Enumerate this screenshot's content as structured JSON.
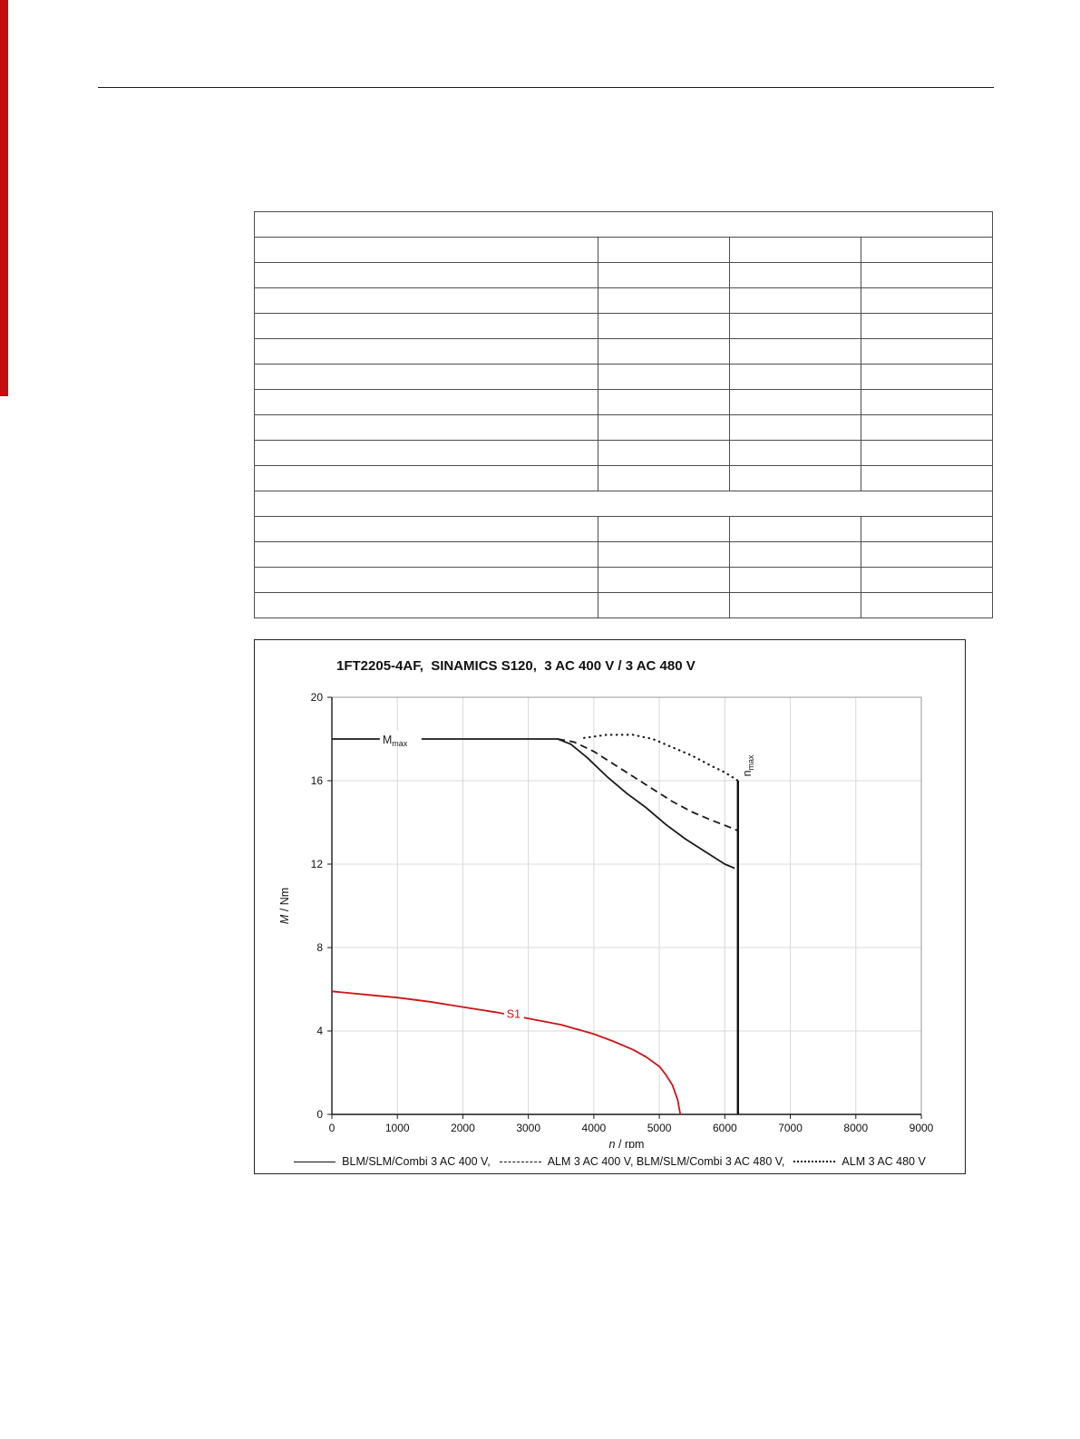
{
  "accent": {
    "sidebar_color": "#c40d0d"
  },
  "table": {
    "columns": 4,
    "col_widths_pct": [
      46.6,
      17.8,
      17.8,
      17.8
    ],
    "rows": [
      {
        "type": "span",
        "cells": [
          ""
        ]
      },
      {
        "type": "cols",
        "cells": [
          "",
          "",
          "",
          ""
        ]
      },
      {
        "type": "cols",
        "cells": [
          "",
          "",
          "",
          ""
        ]
      },
      {
        "type": "cols",
        "cells": [
          "",
          "",
          "",
          ""
        ]
      },
      {
        "type": "cols",
        "cells": [
          "",
          "",
          "",
          ""
        ]
      },
      {
        "type": "cols",
        "cells": [
          "",
          "",
          "",
          ""
        ]
      },
      {
        "type": "cols",
        "cells": [
          "",
          "",
          "",
          ""
        ]
      },
      {
        "type": "cols",
        "cells": [
          "",
          "",
          "",
          ""
        ]
      },
      {
        "type": "cols",
        "cells": [
          "",
          "",
          "",
          ""
        ]
      },
      {
        "type": "cols",
        "cells": [
          "",
          "",
          "",
          ""
        ]
      },
      {
        "type": "cols",
        "cells": [
          "",
          "",
          "",
          ""
        ]
      },
      {
        "type": "span",
        "cells": [
          ""
        ]
      },
      {
        "type": "cols",
        "cells": [
          "",
          "",
          "",
          ""
        ]
      },
      {
        "type": "cols",
        "cells": [
          "",
          "",
          "",
          ""
        ]
      },
      {
        "type": "cols",
        "cells": [
          "",
          "",
          "",
          ""
        ]
      },
      {
        "type": "cols",
        "cells": [
          "",
          "",
          "",
          ""
        ]
      }
    ]
  },
  "chart_data": {
    "type": "line",
    "title": "1FT2205-4AF,  SINAMICS S120,  3 AC 400 V / 3 AC 480 V",
    "xlabel": "n / rpm",
    "ylabel": "M / Nm",
    "xlim": [
      0,
      9000
    ],
    "ylim": [
      0,
      20
    ],
    "xticks": [
      0,
      1000,
      2000,
      3000,
      4000,
      5000,
      6000,
      7000,
      8000,
      9000
    ],
    "yticks": [
      0,
      4,
      8,
      12,
      16,
      20
    ],
    "grid": true,
    "series": [
      {
        "name": "BLM/SLM/Combi 3 AC 400 V",
        "style": "solid",
        "color": "#1a1a1a",
        "points": [
          [
            0,
            18
          ],
          [
            3450,
            18
          ],
          [
            3650,
            17.75
          ],
          [
            3900,
            17.1
          ],
          [
            4200,
            16.2
          ],
          [
            4500,
            15.4
          ],
          [
            4800,
            14.7
          ],
          [
            5100,
            13.9
          ],
          [
            5400,
            13.2
          ],
          [
            5700,
            12.6
          ],
          [
            6000,
            12.0
          ],
          [
            6150,
            11.8
          ]
        ]
      },
      {
        "name": "ALM 3 AC 400 V, BLM/SLM/Combi 3 AC 480 V",
        "style": "dashed",
        "color": "#1a1a1a",
        "points": [
          [
            3450,
            18
          ],
          [
            3700,
            17.85
          ],
          [
            4000,
            17.4
          ],
          [
            4300,
            16.8
          ],
          [
            4600,
            16.2
          ],
          [
            4900,
            15.6
          ],
          [
            5200,
            15.0
          ],
          [
            5500,
            14.5
          ],
          [
            5800,
            14.1
          ],
          [
            6050,
            13.8
          ],
          [
            6200,
            13.6
          ]
        ]
      },
      {
        "name": "ALM 3 AC 480 V",
        "style": "dotted",
        "color": "#1a1a1a",
        "points": [
          [
            3850,
            18.05
          ],
          [
            4200,
            18.2
          ],
          [
            4600,
            18.2
          ],
          [
            4900,
            18.0
          ],
          [
            5200,
            17.6
          ],
          [
            5500,
            17.2
          ],
          [
            5800,
            16.7
          ],
          [
            6000,
            16.4
          ],
          [
            6200,
            16.0
          ]
        ]
      },
      {
        "name": "S1",
        "style": "solid",
        "color": "#cc1417",
        "points": [
          [
            0,
            5.9
          ],
          [
            500,
            5.75
          ],
          [
            1000,
            5.6
          ],
          [
            1500,
            5.4
          ],
          [
            2000,
            5.15
          ],
          [
            2500,
            4.9
          ],
          [
            3000,
            4.6
          ],
          [
            3500,
            4.3
          ],
          [
            4000,
            3.85
          ],
          [
            4300,
            3.5
          ],
          [
            4600,
            3.1
          ],
          [
            4800,
            2.75
          ],
          [
            5000,
            2.3
          ],
          [
            5100,
            1.9
          ],
          [
            5200,
            1.4
          ],
          [
            5280,
            0.7
          ],
          [
            5320,
            0
          ]
        ]
      }
    ],
    "vline": {
      "x": 6200,
      "y_from": 0,
      "y_to": 16
    },
    "annotations": [
      {
        "main": "M",
        "sub": "max",
        "x": 1050,
        "y": 18,
        "color": "#1a1a1a",
        "rotate": false
      },
      {
        "main": "n",
        "sub": "max",
        "x": 6200,
        "y": 16.2,
        "color": "#1a1a1a",
        "rotate": true
      },
      {
        "text": "S1",
        "x": 2780,
        "y": 4.85,
        "color": "#cc1417",
        "rotate": false
      }
    ],
    "legend": [
      {
        "style": "solid",
        "label": "BLM/SLM/Combi 3 AC 400 V,"
      },
      {
        "style": "dashed",
        "label": "ALM 3 AC 400 V, BLM/SLM/Combi 3 AC 480 V,"
      },
      {
        "style": "dotted",
        "label": "ALM 3 AC 480 V"
      }
    ],
    "legend_position": "bottom"
  }
}
